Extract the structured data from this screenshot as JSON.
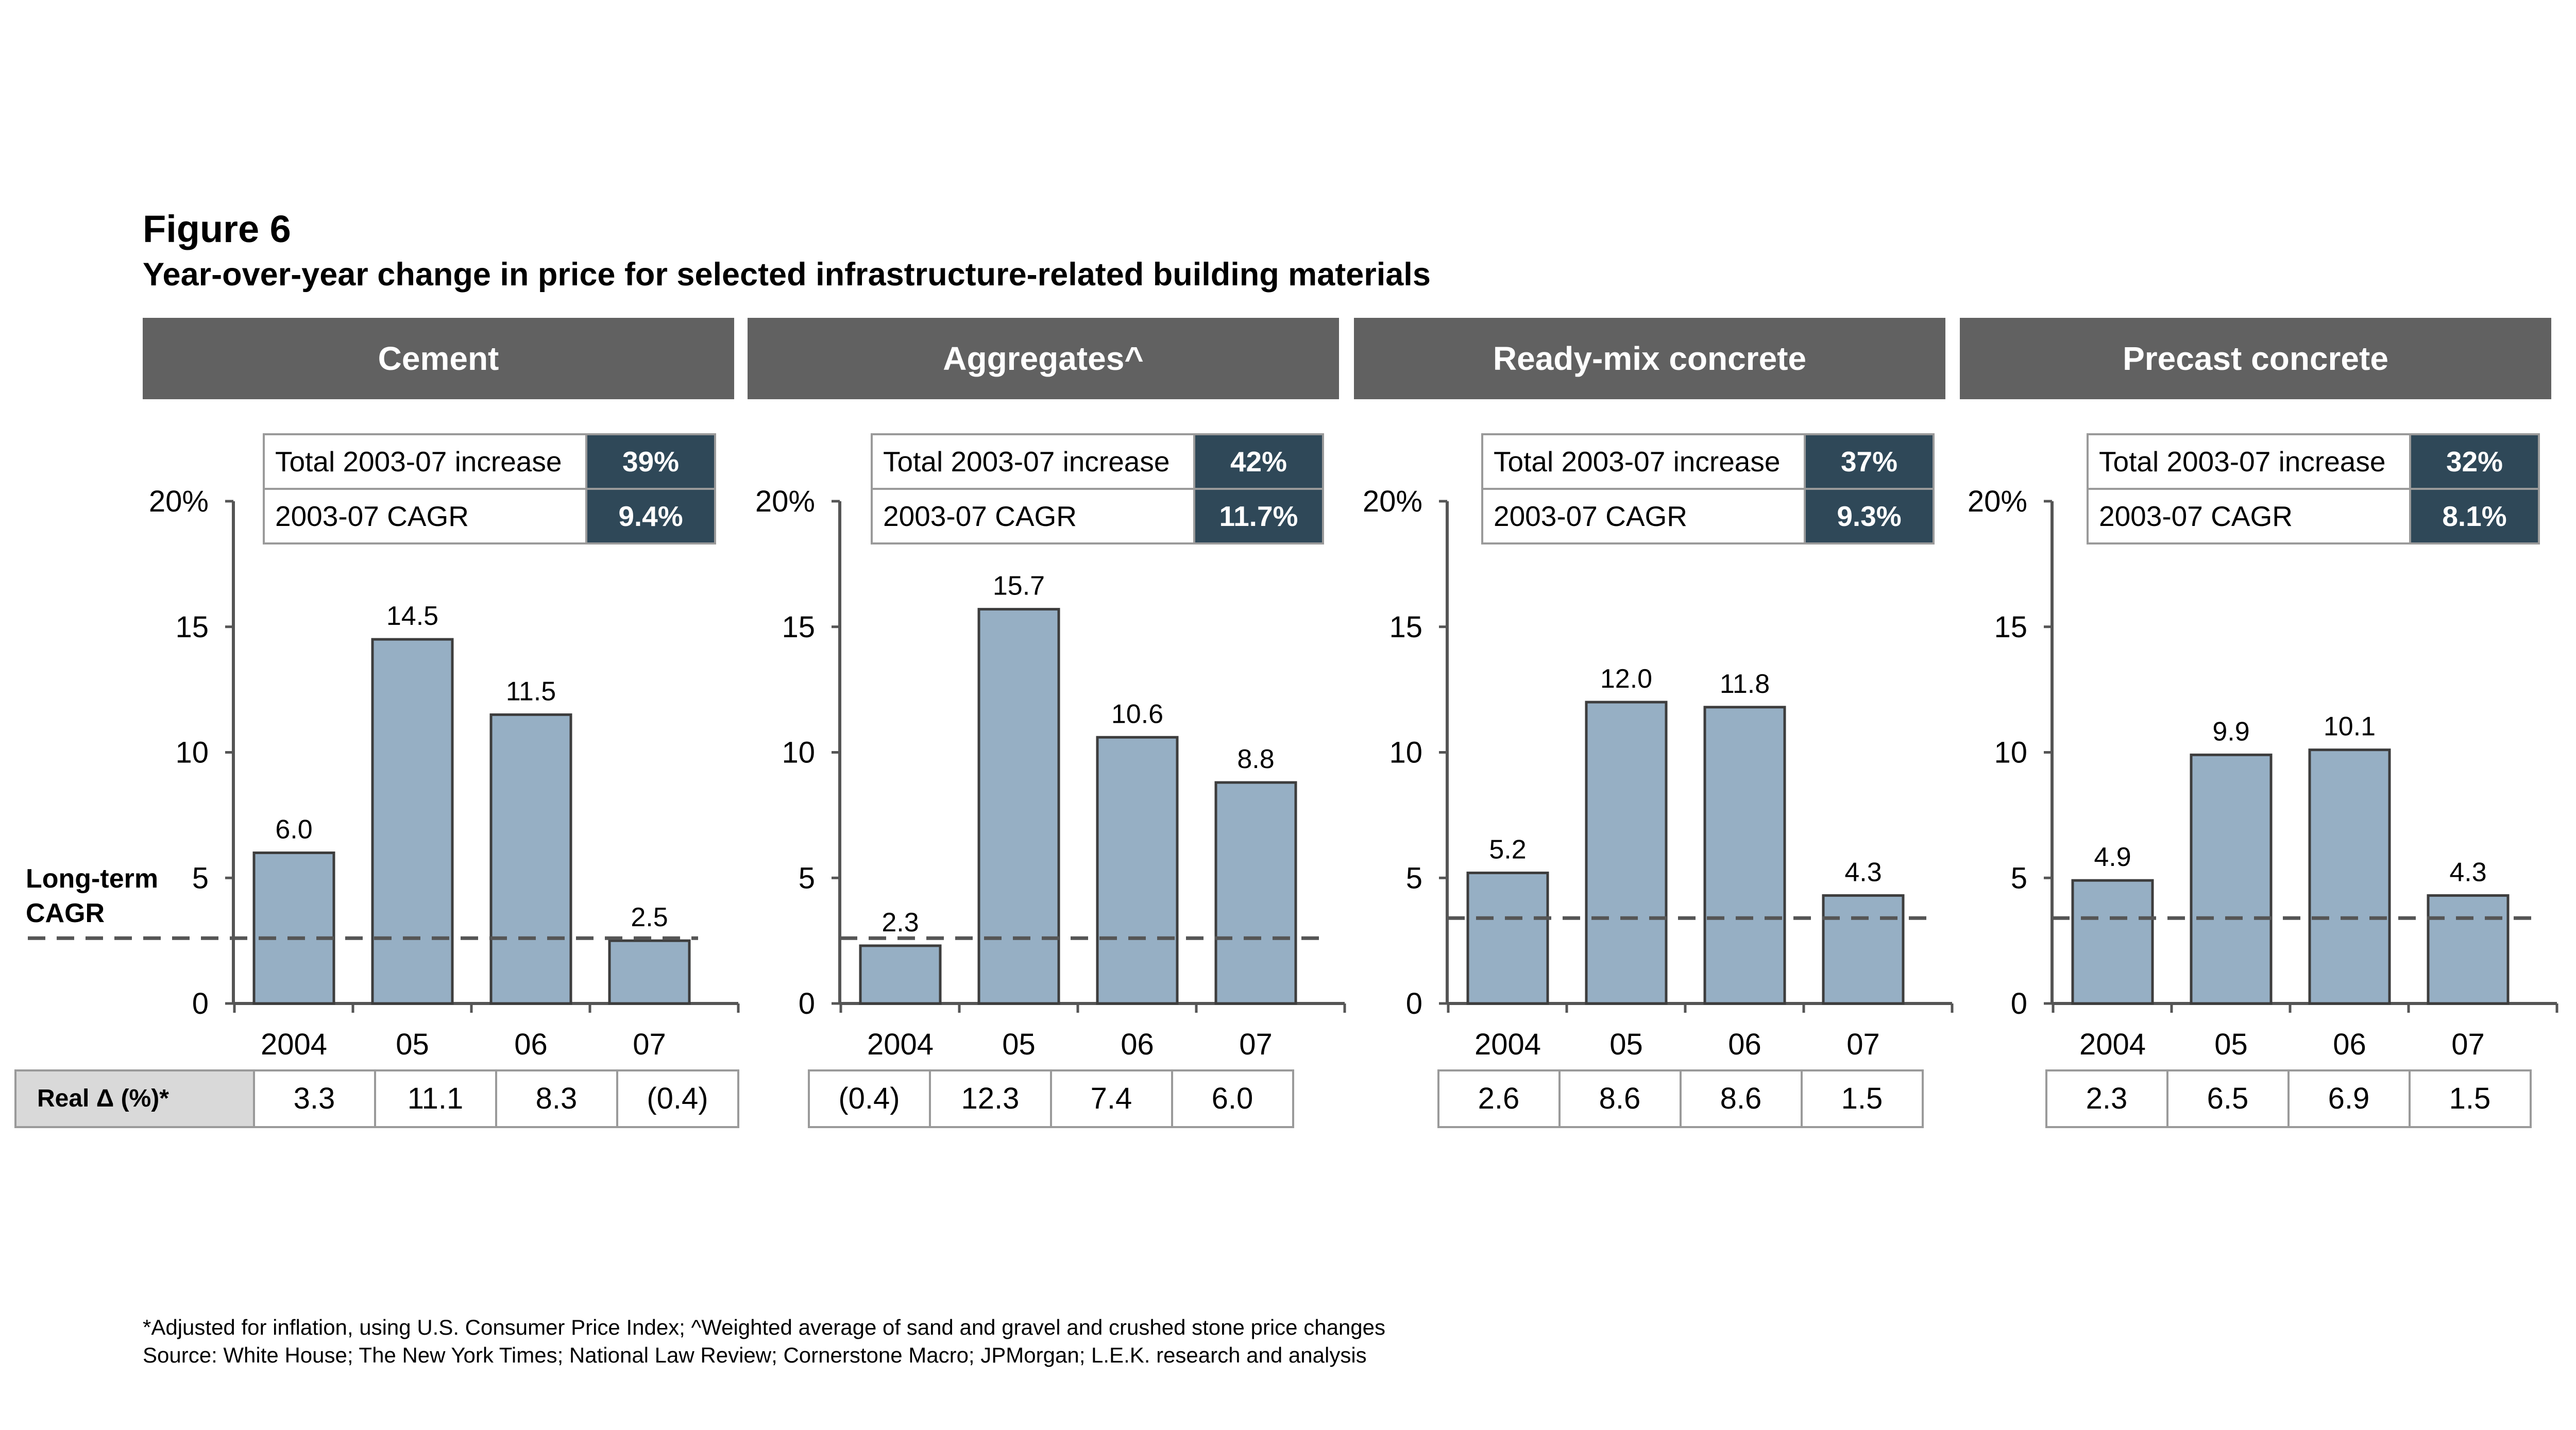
{
  "figure_label": "Figure 6",
  "title": "Year-over-year change in price for selected infrastructure-related building materials",
  "footnotes": [
    "*Adjusted for inflation, using U.S. Consumer Price Index; ^Weighted average of sand and gravel and crushed stone price changes",
    "Source: White House; The New York Times; National Law Review; Cornerstone Macro; JPMorgan; L.E.K. research and analysis"
  ],
  "y_axis_ticks": [
    "20%",
    "15",
    "10",
    "5",
    "0"
  ],
  "x_categories": [
    "2004",
    "05",
    "06",
    "07"
  ],
  "long_term_cagr_label": [
    "Long-term",
    "CAGR"
  ],
  "real_row_label": "Real Δ (%)*",
  "summary_labels": [
    "Total 2003-07 increase",
    "2003-07 CAGR"
  ],
  "colors": {
    "bar": "#96afc4",
    "panel_header": "#616161",
    "summary_value_bg": "#2f4858",
    "dashed_line": "#555555",
    "row_label_bg": "#d9d9d9"
  },
  "chart_data": [
    {
      "type": "bar",
      "title": "Cement",
      "categories": [
        "2004",
        "05",
        "06",
        "07"
      ],
      "values": [
        6.0,
        14.5,
        11.5,
        2.5
      ],
      "value_labels": [
        "6.0",
        "14.5",
        "11.5",
        "2.5"
      ],
      "ylim": [
        0,
        20
      ],
      "long_term_cagr": 2.6,
      "total_increase": "39%",
      "cagr": "9.4%",
      "real_change": [
        "3.3",
        "11.1",
        "8.3",
        "(0.4)"
      ]
    },
    {
      "type": "bar",
      "title": "Aggregates^",
      "categories": [
        "2004",
        "05",
        "06",
        "07"
      ],
      "values": [
        2.3,
        15.7,
        10.6,
        8.8
      ],
      "value_labels": [
        "2.3",
        "15.7",
        "10.6",
        "8.8"
      ],
      "ylim": [
        0,
        20
      ],
      "long_term_cagr": 2.6,
      "total_increase": "42%",
      "cagr": "11.7%",
      "real_change": [
        "(0.4)",
        "12.3",
        "7.4",
        "6.0"
      ]
    },
    {
      "type": "bar",
      "title": "Ready-mix concrete",
      "categories": [
        "2004",
        "05",
        "06",
        "07"
      ],
      "values": [
        5.2,
        12.0,
        11.8,
        4.3
      ],
      "value_labels": [
        "5.2",
        "12.0",
        "11.8",
        "4.3"
      ],
      "ylim": [
        0,
        20
      ],
      "long_term_cagr": 3.4,
      "total_increase": "37%",
      "cagr": "9.3%",
      "real_change": [
        "2.6",
        "8.6",
        "8.6",
        "1.5"
      ]
    },
    {
      "type": "bar",
      "title": "Precast concrete",
      "categories": [
        "2004",
        "05",
        "06",
        "07"
      ],
      "values": [
        4.9,
        9.9,
        10.1,
        4.3
      ],
      "value_labels": [
        "4.9",
        "9.9",
        "10.1",
        "4.3"
      ],
      "ylim": [
        0,
        20
      ],
      "long_term_cagr": 3.4,
      "total_increase": "32%",
      "cagr": "8.1%",
      "real_change": [
        "2.3",
        "6.5",
        "6.9",
        "1.5"
      ]
    }
  ]
}
